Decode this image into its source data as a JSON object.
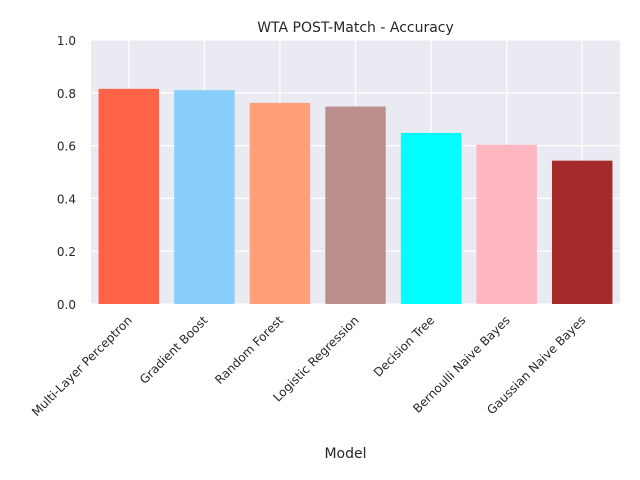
{
  "chart_data": {
    "type": "bar",
    "title": "WTA POST-Match - Accuracy",
    "xlabel": "Model",
    "ylabel": "",
    "categories": [
      "Multi-Layer Perceptron",
      "Gradient Boost",
      "Random Forest",
      "Logistic Regression",
      "Decision Tree",
      "Bernoulli Naive Bayes",
      "Gaussian Naive Bayes"
    ],
    "values": [
      0.815,
      0.81,
      0.762,
      0.748,
      0.648,
      0.603,
      0.543
    ],
    "colors": [
      "#ff6347",
      "#87cefa",
      "#ffa07a",
      "#bc8f8f",
      "#00ffff",
      "#ffb6c1",
      "#a52a2a"
    ],
    "ylim": [
      0,
      1.0
    ],
    "yticks": [
      "0.0",
      "0.2",
      "0.4",
      "0.6",
      "0.8",
      "1.0"
    ],
    "grid": true,
    "background": "#eaeaf2"
  }
}
